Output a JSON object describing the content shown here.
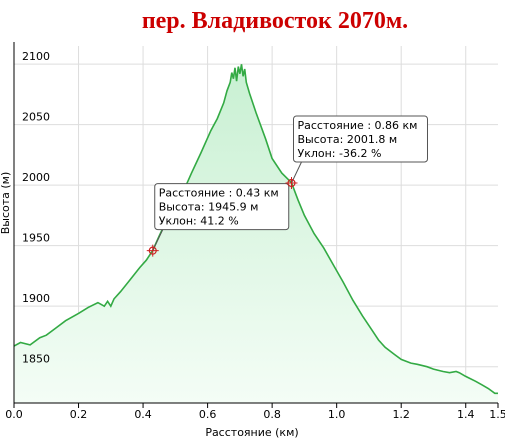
{
  "chart_data": {
    "type": "area",
    "title": "пер. Владивосток 2070м.",
    "title_color": "#cc0000",
    "xlabel": "Расстояние (км)",
    "ylabel": "Высота (м)",
    "xlim": [
      0.0,
      1.5
    ],
    "ylim": [
      1820,
      2115
    ],
    "xticks": [
      "0.0",
      "0.2",
      "0.4",
      "0.6",
      "0.8",
      "1.0",
      "1.2",
      "1.4",
      "1.5"
    ],
    "yticks": [
      "2100",
      "2050",
      "2000",
      "1950",
      "1900",
      "1850"
    ],
    "grid": true,
    "line_color": "#33aa44",
    "fill_color_top": "#c8f0d2",
    "fill_color_bottom": "#f4fdf6",
    "series": [
      {
        "x": [
          0.0,
          0.02,
          0.05,
          0.08,
          0.1,
          0.13,
          0.16,
          0.2,
          0.23,
          0.26,
          0.28,
          0.29,
          0.3,
          0.31,
          0.33,
          0.36,
          0.39,
          0.41,
          0.43,
          0.45,
          0.48,
          0.52,
          0.55,
          0.58,
          0.61,
          0.63,
          0.65,
          0.66,
          0.67,
          0.675,
          0.68,
          0.685,
          0.69,
          0.695,
          0.7,
          0.705,
          0.71,
          0.715,
          0.72,
          0.73,
          0.75,
          0.78,
          0.8,
          0.83,
          0.86,
          0.88,
          0.9,
          0.93,
          0.96,
          0.99,
          1.02,
          1.05,
          1.08,
          1.11,
          1.13,
          1.15,
          1.18,
          1.2,
          1.23,
          1.25,
          1.28,
          1.3,
          1.33,
          1.35,
          1.37,
          1.38,
          1.4,
          1.43,
          1.45,
          1.47,
          1.49,
          1.5
        ],
        "y": [
          1867,
          1870,
          1868,
          1874,
          1876,
          1882,
          1888,
          1894,
          1899,
          1903,
          1900,
          1904,
          1900,
          1906,
          1912,
          1922,
          1932,
          1938,
          1946,
          1958,
          1975,
          1992,
          2010,
          2027,
          2045,
          2055,
          2068,
          2078,
          2085,
          2093,
          2088,
          2097,
          2086,
          2098,
          2092,
          2100,
          2090,
          2096,
          2085,
          2076,
          2060,
          2038,
          2022,
          2010,
          2002,
          1988,
          1975,
          1960,
          1948,
          1934,
          1920,
          1905,
          1892,
          1880,
          1872,
          1866,
          1860,
          1856,
          1853,
          1852,
          1850,
          1848,
          1846,
          1845,
          1846,
          1845,
          1842,
          1838,
          1835,
          1832,
          1828,
          1828
        ]
      }
    ],
    "annotations": [
      {
        "x": 0.43,
        "y": 1945.9,
        "lines": [
          "Расстояние : 0.43 км",
          "Высота: 1945.9 м",
          "Уклон: 41.2 %"
        ]
      },
      {
        "x": 0.86,
        "y": 2001.8,
        "lines": [
          "Расстояние : 0.86 км",
          "Высота: 2001.8 м",
          "Уклон: -36.2 %"
        ]
      }
    ]
  }
}
